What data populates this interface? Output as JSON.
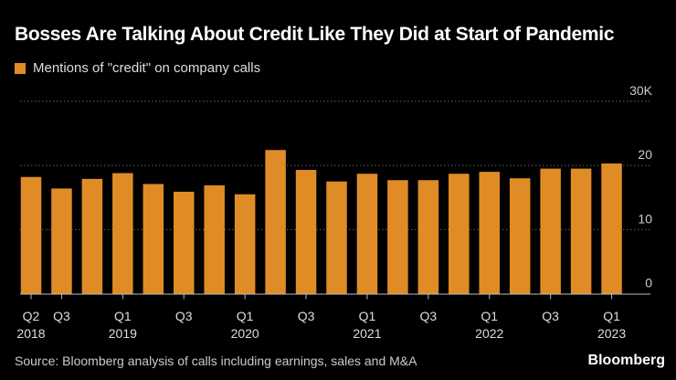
{
  "chart_data": {
    "type": "bar",
    "title": "Bosses Are Talking About Credit Like They Did at Start of Pandemic",
    "legend": [
      {
        "name": "Mentions of \"credit\" on company calls",
        "color": "#e08c26"
      }
    ],
    "legend_placement": "top-left",
    "categories": [
      "Q2 2018",
      "Q3 2018",
      "Q4 2018",
      "Q1 2019",
      "Q2 2019",
      "Q3 2019",
      "Q4 2019",
      "Q1 2020",
      "Q2 2020",
      "Q3 2020",
      "Q4 2020",
      "Q1 2021",
      "Q2 2021",
      "Q3 2021",
      "Q4 2021",
      "Q1 2022",
      "Q2 2022",
      "Q3 2022",
      "Q4 2022",
      "Q1 2023"
    ],
    "series": [
      {
        "name": "Mentions of \"credit\" on company calls",
        "values": [
          18.2,
          16.4,
          17.9,
          18.8,
          17.1,
          15.9,
          16.9,
          15.5,
          22.4,
          19.3,
          17.5,
          18.7,
          17.7,
          17.7,
          18.7,
          19.0,
          18.0,
          19.5,
          19.5,
          20.3
        ]
      }
    ],
    "ylim": [
      0,
      30
    ],
    "yticks": [
      {
        "value": 0,
        "label": "0"
      },
      {
        "value": 10,
        "label": "10"
      },
      {
        "value": 20,
        "label": "20"
      },
      {
        "value": 30,
        "label": "30K"
      }
    ],
    "xticks": [
      {
        "index": 0,
        "q": "Q2",
        "year": "2018"
      },
      {
        "index": 1,
        "q": "Q3",
        "year": ""
      },
      {
        "index": 3,
        "q": "Q1",
        "year": "2019"
      },
      {
        "index": 5,
        "q": "Q3",
        "year": ""
      },
      {
        "index": 7,
        "q": "Q1",
        "year": "2020"
      },
      {
        "index": 9,
        "q": "Q3",
        "year": ""
      },
      {
        "index": 11,
        "q": "Q1",
        "year": "2021"
      },
      {
        "index": 13,
        "q": "Q3",
        "year": ""
      },
      {
        "index": 15,
        "q": "Q1",
        "year": "2022"
      },
      {
        "index": 17,
        "q": "Q3",
        "year": ""
      },
      {
        "index": 19,
        "q": "Q1",
        "year": "2023"
      }
    ],
    "grid": true,
    "colors": {
      "bar": "#e08c26",
      "background": "#000000",
      "grid": "#666666"
    }
  },
  "source": "Source: Bloomberg analysis of calls including earnings, sales and M&A",
  "logo": "Bloomberg"
}
